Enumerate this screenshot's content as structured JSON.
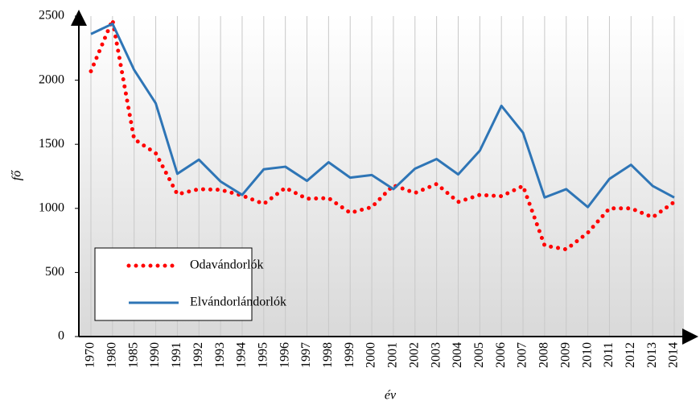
{
  "chart_data": {
    "type": "line",
    "x_label": "év",
    "y_label": "fő",
    "categories": [
      "1970",
      "1980",
      "1985",
      "1990",
      "1991",
      "1992",
      "1993",
      "1994",
      "1995",
      "1996",
      "1997",
      "1998",
      "1999",
      "2000",
      "2001",
      "2002",
      "2003",
      "2004",
      "2005",
      "2006",
      "2007",
      "2008",
      "2009",
      "2010",
      "2011",
      "2012",
      "2013",
      "2014"
    ],
    "series": [
      {
        "name": "Odavándorlók",
        "color": "#ff0000",
        "style": "dotted",
        "values": [
          2070,
          2470,
          1540,
          1430,
          1110,
          1150,
          1145,
          1100,
          1035,
          1160,
          1075,
          1080,
          965,
          1010,
          1180,
          1120,
          1190,
          1050,
          1105,
          1095,
          1175,
          710,
          680,
          810,
          1000,
          1000,
          930,
          1050
        ]
      },
      {
        "name": "Elvándorlándorlók",
        "color": "#2e75b6",
        "style": "solid",
        "values": [
          2360,
          2440,
          2080,
          1820,
          1270,
          1380,
          1210,
          1105,
          1305,
          1325,
          1215,
          1360,
          1240,
          1260,
          1150,
          1310,
          1385,
          1265,
          1450,
          1800,
          1590,
          1085,
          1150,
          1010,
          1230,
          1340,
          1175,
          1085
        ]
      }
    ],
    "ylim": [
      0,
      2500
    ],
    "yticks": [
      0,
      500,
      1000,
      1500,
      2000,
      2500
    ],
    "grid": "vertical",
    "legend": "lower left"
  }
}
